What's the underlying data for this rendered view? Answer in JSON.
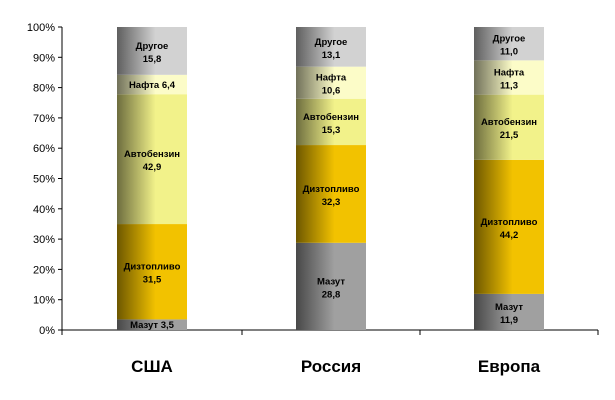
{
  "chart_data": {
    "type": "bar",
    "stacked": true,
    "percent": true,
    "categories": [
      "США",
      "Россия",
      "Европа"
    ],
    "series": [
      {
        "name": "Мазут",
        "values": [
          "3,5",
          "28,8",
          "11,9"
        ],
        "color": "#a0a0a0"
      },
      {
        "name": "Дизтопливо",
        "values": [
          "31,5",
          "32,3",
          "44,2"
        ],
        "color": "#f2c200"
      },
      {
        "name": "Автобензин",
        "values": [
          "42,9",
          "15,3",
          "21,5"
        ],
        "color": "#f2f28a"
      },
      {
        "name": "Нафта",
        "values": [
          "6,4",
          "10,6",
          "11,3"
        ],
        "color": "#fcfcc8"
      },
      {
        "name": "Другое",
        "values": [
          "15,8",
          "13,1",
          "11,0"
        ],
        "color": "#d2d2d2"
      }
    ],
    "yticks": [
      "0%",
      "10%",
      "20%",
      "30%",
      "40%",
      "50%",
      "60%",
      "70%",
      "80%",
      "90%",
      "100%"
    ],
    "ylim": [
      0,
      100
    ],
    "grid": false,
    "legend": "none",
    "title": "",
    "xlabel": "",
    "ylabel": ""
  }
}
